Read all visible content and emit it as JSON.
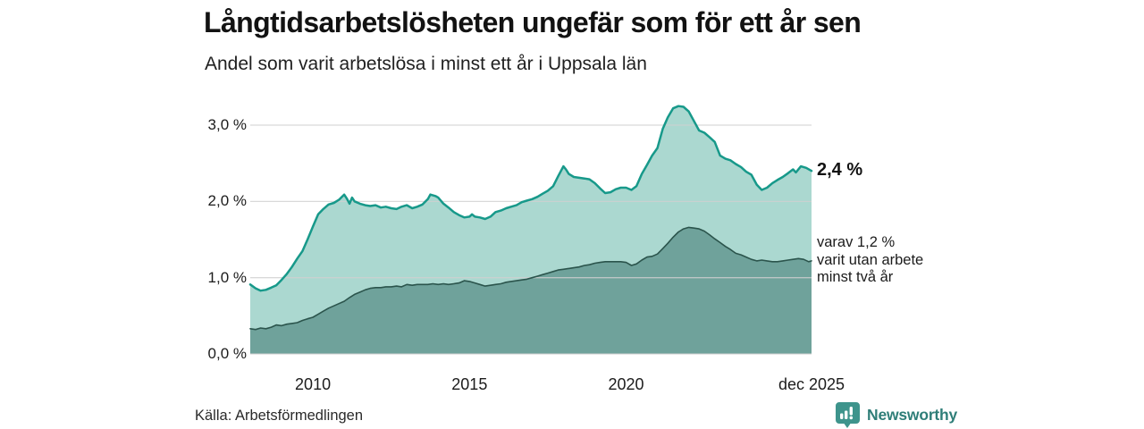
{
  "header": {
    "title": "Långtidsarbetslösheten ungefär som för ett år sen",
    "subtitle": "Andel som varit arbetslösa i minst ett år i Uppsala län"
  },
  "footer": {
    "source": "Källa: Arbetsförmedlingen",
    "brand": "Newsworthy",
    "brand_icon": "newsworthy-bars-badge-icon"
  },
  "colors": {
    "series1_line": "#17998a",
    "series1_fill": "#abd8d0",
    "series2_line": "#2b544c",
    "series2_fill": "#6fa29b",
    "gridline": "#d0d0d0",
    "brand_badge": "#3e948c",
    "brand_text": "#2f7e78"
  },
  "chart_data": {
    "type": "area",
    "title": "Långtidsarbetslösheten ungefär som för ett år sen",
    "subtitle": "Andel som varit arbetslösa i minst ett år i Uppsala län",
    "unit": "%",
    "grid": "horizontal",
    "x_axis": {
      "range": [
        2008,
        2025.92
      ],
      "ticks": [
        {
          "label": "2010",
          "year": 2010
        },
        {
          "label": "2015",
          "year": 2015
        },
        {
          "label": "2020",
          "year": 2020
        },
        {
          "label": "dec 2025",
          "year": 2025.92
        }
      ]
    },
    "y_axis": {
      "range": [
        0,
        3.3
      ],
      "ticks": [
        {
          "label": "0,0 %",
          "value": 0.0
        },
        {
          "label": "1,0 %",
          "value": 1.0
        },
        {
          "label": "2,0 %",
          "value": 2.0
        },
        {
          "label": "3,0 %",
          "value": 3.0
        }
      ]
    },
    "annotations": {
      "end_value_primary": "2,4 %",
      "end_note_lines": [
        "varav 1,2 %",
        "varit utan arbete",
        "minst två år"
      ]
    },
    "series": [
      {
        "name": "Andel arbetslösa minst ett år",
        "end_value": 2.4,
        "line_color": "#17998a",
        "fill_color": "#abd8d0",
        "points": [
          [
            2008.0,
            0.91
          ],
          [
            2008.17,
            0.86
          ],
          [
            2008.33,
            0.83
          ],
          [
            2008.5,
            0.84
          ],
          [
            2008.67,
            0.87
          ],
          [
            2008.83,
            0.9
          ],
          [
            2009.0,
            0.97
          ],
          [
            2009.17,
            1.05
          ],
          [
            2009.33,
            1.14
          ],
          [
            2009.5,
            1.25
          ],
          [
            2009.67,
            1.35
          ],
          [
            2009.83,
            1.5
          ],
          [
            2010.0,
            1.67
          ],
          [
            2010.17,
            1.83
          ],
          [
            2010.33,
            1.9
          ],
          [
            2010.5,
            1.96
          ],
          [
            2010.67,
            1.98
          ],
          [
            2010.83,
            2.02
          ],
          [
            2011.0,
            2.09
          ],
          [
            2011.08,
            2.04
          ],
          [
            2011.17,
            1.97
          ],
          [
            2011.25,
            2.05
          ],
          [
            2011.33,
            2.0
          ],
          [
            2011.5,
            1.97
          ],
          [
            2011.67,
            1.95
          ],
          [
            2011.83,
            1.94
          ],
          [
            2012.0,
            1.95
          ],
          [
            2012.17,
            1.92
          ],
          [
            2012.33,
            1.93
          ],
          [
            2012.5,
            1.91
          ],
          [
            2012.67,
            1.9
          ],
          [
            2012.83,
            1.93
          ],
          [
            2013.0,
            1.95
          ],
          [
            2013.17,
            1.91
          ],
          [
            2013.33,
            1.93
          ],
          [
            2013.5,
            1.96
          ],
          [
            2013.67,
            2.03
          ],
          [
            2013.75,
            2.09
          ],
          [
            2013.92,
            2.07
          ],
          [
            2014.0,
            2.05
          ],
          [
            2014.17,
            1.97
          ],
          [
            2014.33,
            1.92
          ],
          [
            2014.5,
            1.86
          ],
          [
            2014.67,
            1.82
          ],
          [
            2014.83,
            1.79
          ],
          [
            2015.0,
            1.8
          ],
          [
            2015.08,
            1.83
          ],
          [
            2015.17,
            1.8
          ],
          [
            2015.33,
            1.79
          ],
          [
            2015.5,
            1.77
          ],
          [
            2015.67,
            1.8
          ],
          [
            2015.83,
            1.86
          ],
          [
            2016.0,
            1.88
          ],
          [
            2016.17,
            1.91
          ],
          [
            2016.33,
            1.93
          ],
          [
            2016.5,
            1.95
          ],
          [
            2016.67,
            1.99
          ],
          [
            2016.83,
            2.01
          ],
          [
            2017.0,
            2.03
          ],
          [
            2017.17,
            2.06
          ],
          [
            2017.33,
            2.1
          ],
          [
            2017.5,
            2.14
          ],
          [
            2017.67,
            2.2
          ],
          [
            2017.83,
            2.33
          ],
          [
            2018.0,
            2.46
          ],
          [
            2018.08,
            2.42
          ],
          [
            2018.17,
            2.36
          ],
          [
            2018.33,
            2.32
          ],
          [
            2018.5,
            2.31
          ],
          [
            2018.67,
            2.3
          ],
          [
            2018.83,
            2.29
          ],
          [
            2019.0,
            2.24
          ],
          [
            2019.17,
            2.17
          ],
          [
            2019.33,
            2.11
          ],
          [
            2019.5,
            2.12
          ],
          [
            2019.67,
            2.16
          ],
          [
            2019.83,
            2.18
          ],
          [
            2020.0,
            2.18
          ],
          [
            2020.17,
            2.15
          ],
          [
            2020.33,
            2.2
          ],
          [
            2020.5,
            2.36
          ],
          [
            2020.67,
            2.48
          ],
          [
            2020.83,
            2.6
          ],
          [
            2021.0,
            2.7
          ],
          [
            2021.17,
            2.95
          ],
          [
            2021.33,
            3.1
          ],
          [
            2021.5,
            3.22
          ],
          [
            2021.67,
            3.25
          ],
          [
            2021.83,
            3.24
          ],
          [
            2022.0,
            3.18
          ],
          [
            2022.17,
            3.05
          ],
          [
            2022.33,
            2.93
          ],
          [
            2022.5,
            2.9
          ],
          [
            2022.67,
            2.84
          ],
          [
            2022.83,
            2.78
          ],
          [
            2023.0,
            2.6
          ],
          [
            2023.17,
            2.56
          ],
          [
            2023.33,
            2.54
          ],
          [
            2023.5,
            2.49
          ],
          [
            2023.67,
            2.45
          ],
          [
            2023.83,
            2.39
          ],
          [
            2024.0,
            2.35
          ],
          [
            2024.17,
            2.22
          ],
          [
            2024.33,
            2.15
          ],
          [
            2024.5,
            2.18
          ],
          [
            2024.67,
            2.24
          ],
          [
            2024.83,
            2.28
          ],
          [
            2025.0,
            2.32
          ],
          [
            2025.17,
            2.37
          ],
          [
            2025.33,
            2.42
          ],
          [
            2025.42,
            2.38
          ],
          [
            2025.58,
            2.46
          ],
          [
            2025.75,
            2.44
          ],
          [
            2025.92,
            2.4
          ]
        ]
      },
      {
        "name": "Varav utan arbete minst två år",
        "end_value": 1.2,
        "line_color": "#2b544c",
        "fill_color": "#6fa29b",
        "points": [
          [
            2008.0,
            0.33
          ],
          [
            2008.17,
            0.32
          ],
          [
            2008.33,
            0.34
          ],
          [
            2008.5,
            0.33
          ],
          [
            2008.67,
            0.35
          ],
          [
            2008.83,
            0.38
          ],
          [
            2009.0,
            0.37
          ],
          [
            2009.17,
            0.39
          ],
          [
            2009.33,
            0.4
          ],
          [
            2009.5,
            0.41
          ],
          [
            2009.67,
            0.44
          ],
          [
            2009.83,
            0.46
          ],
          [
            2010.0,
            0.48
          ],
          [
            2010.17,
            0.52
          ],
          [
            2010.33,
            0.56
          ],
          [
            2010.5,
            0.6
          ],
          [
            2010.67,
            0.63
          ],
          [
            2010.83,
            0.66
          ],
          [
            2011.0,
            0.69
          ],
          [
            2011.17,
            0.74
          ],
          [
            2011.33,
            0.78
          ],
          [
            2011.5,
            0.81
          ],
          [
            2011.67,
            0.84
          ],
          [
            2011.83,
            0.86
          ],
          [
            2012.0,
            0.87
          ],
          [
            2012.17,
            0.87
          ],
          [
            2012.33,
            0.88
          ],
          [
            2012.5,
            0.88
          ],
          [
            2012.67,
            0.89
          ],
          [
            2012.83,
            0.88
          ],
          [
            2013.0,
            0.91
          ],
          [
            2013.17,
            0.9
          ],
          [
            2013.33,
            0.91
          ],
          [
            2013.5,
            0.91
          ],
          [
            2013.67,
            0.91
          ],
          [
            2013.83,
            0.92
          ],
          [
            2014.0,
            0.91
          ],
          [
            2014.17,
            0.92
          ],
          [
            2014.33,
            0.91
          ],
          [
            2014.5,
            0.92
          ],
          [
            2014.67,
            0.93
          ],
          [
            2014.83,
            0.96
          ],
          [
            2015.0,
            0.95
          ],
          [
            2015.17,
            0.93
          ],
          [
            2015.33,
            0.91
          ],
          [
            2015.5,
            0.89
          ],
          [
            2015.67,
            0.9
          ],
          [
            2015.83,
            0.91
          ],
          [
            2016.0,
            0.92
          ],
          [
            2016.17,
            0.94
          ],
          [
            2016.33,
            0.95
          ],
          [
            2016.5,
            0.96
          ],
          [
            2016.67,
            0.97
          ],
          [
            2016.83,
            0.98
          ],
          [
            2017.0,
            1.0
          ],
          [
            2017.17,
            1.02
          ],
          [
            2017.33,
            1.04
          ],
          [
            2017.5,
            1.06
          ],
          [
            2017.67,
            1.08
          ],
          [
            2017.83,
            1.1
          ],
          [
            2018.0,
            1.11
          ],
          [
            2018.17,
            1.12
          ],
          [
            2018.33,
            1.13
          ],
          [
            2018.5,
            1.14
          ],
          [
            2018.67,
            1.16
          ],
          [
            2018.83,
            1.17
          ],
          [
            2019.0,
            1.19
          ],
          [
            2019.17,
            1.2
          ],
          [
            2019.33,
            1.21
          ],
          [
            2019.5,
            1.21
          ],
          [
            2019.67,
            1.21
          ],
          [
            2019.83,
            1.21
          ],
          [
            2020.0,
            1.2
          ],
          [
            2020.17,
            1.16
          ],
          [
            2020.33,
            1.18
          ],
          [
            2020.5,
            1.23
          ],
          [
            2020.67,
            1.27
          ],
          [
            2020.83,
            1.28
          ],
          [
            2021.0,
            1.31
          ],
          [
            2021.17,
            1.38
          ],
          [
            2021.33,
            1.45
          ],
          [
            2021.5,
            1.53
          ],
          [
            2021.67,
            1.6
          ],
          [
            2021.83,
            1.64
          ],
          [
            2022.0,
            1.66
          ],
          [
            2022.17,
            1.65
          ],
          [
            2022.33,
            1.64
          ],
          [
            2022.5,
            1.61
          ],
          [
            2022.67,
            1.56
          ],
          [
            2022.83,
            1.51
          ],
          [
            2023.0,
            1.46
          ],
          [
            2023.17,
            1.41
          ],
          [
            2023.33,
            1.37
          ],
          [
            2023.5,
            1.32
          ],
          [
            2023.67,
            1.3
          ],
          [
            2023.83,
            1.27
          ],
          [
            2024.0,
            1.24
          ],
          [
            2024.17,
            1.22
          ],
          [
            2024.33,
            1.23
          ],
          [
            2024.5,
            1.22
          ],
          [
            2024.67,
            1.21
          ],
          [
            2024.83,
            1.21
          ],
          [
            2025.0,
            1.22
          ],
          [
            2025.17,
            1.23
          ],
          [
            2025.33,
            1.24
          ],
          [
            2025.5,
            1.25
          ],
          [
            2025.67,
            1.24
          ],
          [
            2025.83,
            1.21
          ],
          [
            2025.92,
            1.22
          ]
        ]
      }
    ]
  }
}
